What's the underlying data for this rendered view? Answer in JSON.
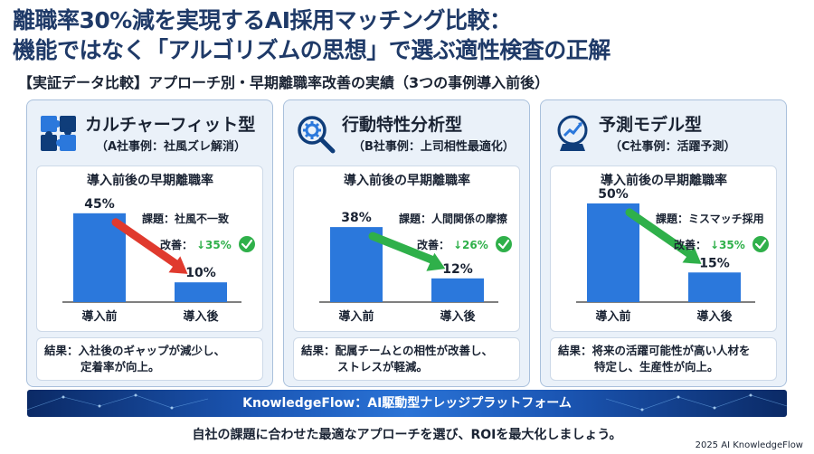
{
  "header": {
    "title_line1": "離職率30%減を実現するAI採用マッチング比較：",
    "title_line2": "機能ではなく「アルゴリズムの思想」で選ぶ適性検査の正解",
    "subtitle": "【実証データ比較】アプローチ別・早期離職率改善の実績（3つの事例導入前後）"
  },
  "cards": [
    {
      "icon": "puzzle-icon",
      "title": "カルチャーフィット型",
      "case": "（A社事例：社風ズレ解消）",
      "chart_title": "導入前後の早期離職率",
      "issue": "課題：社風不一致",
      "improvement_label": "改善：",
      "improvement_value": "↓35%",
      "result_line1": "結果：入社後のギャップが減少し、",
      "result_line2": "定着率が向上。",
      "arrow_color": "#e03a2e"
    },
    {
      "icon": "gear-magnifier-icon",
      "title": "行動特性分析型",
      "case": "（B社事例：上司相性最適化）",
      "chart_title": "導入前後の早期離職率",
      "issue": "課題：人間関係の摩擦",
      "improvement_label": "改善：",
      "improvement_value": "↓26%",
      "result_line1": "結果：配属チームとの相性が改善し、",
      "result_line2": "ストレスが軽減。",
      "arrow_color": "#2fb04a"
    },
    {
      "icon": "crystal-ball-icon",
      "title": "予測モデル型",
      "case": "（C社事例：活躍予測）",
      "chart_title": "導入前後の早期離職率",
      "issue": "課題：ミスマッチ採用",
      "improvement_label": "改善：",
      "improvement_value": "↓35%",
      "result_line1": "結果：将来の活躍可能性が高い人材を",
      "result_line2": "特定し、生産性が向上。",
      "arrow_color": "#2fb04a"
    }
  ],
  "chart_data": [
    {
      "type": "bar",
      "title": "導入前後の早期離職率",
      "categories": [
        "導入前",
        "導入後"
      ],
      "values": [
        45,
        10
      ],
      "value_labels": [
        "45%",
        "10%"
      ],
      "ylim": [
        0,
        55
      ]
    },
    {
      "type": "bar",
      "title": "導入前後の早期離職率",
      "categories": [
        "導入前",
        "導入後"
      ],
      "values": [
        38,
        12
      ],
      "value_labels": [
        "38%",
        "12%"
      ],
      "ylim": [
        0,
        55
      ]
    },
    {
      "type": "bar",
      "title": "導入前後の早期離職率",
      "categories": [
        "導入前",
        "導入後"
      ],
      "values": [
        50,
        15
      ],
      "value_labels": [
        "50%",
        "15%"
      ],
      "ylim": [
        0,
        55
      ]
    }
  ],
  "colors": {
    "title": "#1f3a68",
    "bar": "#2b78dc",
    "check": "#2fb04a",
    "improvement_text": "#2fb04a"
  },
  "banner": {
    "text": "KnowledgeFlow：AI駆動型ナレッジプラットフォーム"
  },
  "footer": {
    "message": "自社の課題に合わせた最適なアプローチを選び、ROIを最大化しましょう。",
    "copyright": "2025 AI KnowledgeFlow"
  }
}
